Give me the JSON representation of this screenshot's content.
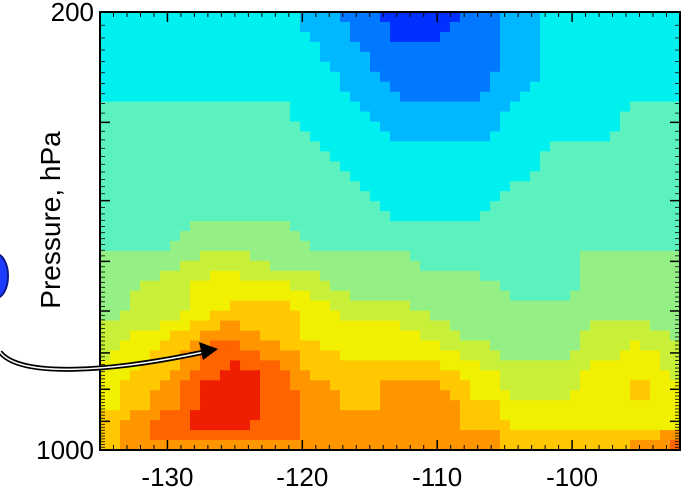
{
  "chart_data": {
    "type": "heatmap",
    "title": "",
    "xlabel": "",
    "ylabel": "Pressure, hPa",
    "x_ticks": [
      -130,
      -120,
      -110,
      -100
    ],
    "x_tick_labels": [
      "-130",
      "-120",
      "-110",
      "-100"
    ],
    "y_tick_labels": [
      "200",
      "1000"
    ],
    "xlim": [
      -135,
      -92
    ],
    "ylim": [
      1000,
      200
    ],
    "y_axis_inverted": true,
    "colormap": "jet",
    "grid": false,
    "x": [
      -135,
      -130,
      -127,
      -125,
      -122,
      -119,
      -116,
      -113,
      -110,
      -107,
      -104,
      -101,
      -98,
      -95,
      -92
    ],
    "y_levels": [
      200,
      250,
      300,
      350,
      400,
      450,
      500,
      550,
      600,
      650,
      700,
      750,
      800,
      850,
      900,
      950,
      1000
    ],
    "level_scale": [
      1,
      2,
      3,
      4,
      5,
      6,
      7,
      8,
      9,
      10,
      11,
      12
    ],
    "z": [
      [
        4,
        4,
        4,
        4,
        4,
        3,
        2,
        1,
        1,
        2,
        3,
        4,
        4,
        4,
        4
      ],
      [
        4,
        4,
        4,
        4,
        4,
        4,
        3,
        2,
        2,
        2,
        3,
        4,
        4,
        4,
        4
      ],
      [
        5,
        5,
        5,
        5,
        5,
        4,
        4,
        3,
        3,
        3,
        4,
        4,
        4,
        5,
        5
      ],
      [
        5,
        5,
        5,
        5,
        5,
        5,
        4,
        4,
        4,
        4,
        4,
        5,
        5,
        5,
        5
      ],
      [
        5,
        5,
        5,
        5,
        5,
        5,
        5,
        4,
        4,
        4,
        5,
        5,
        5,
        5,
        5
      ],
      [
        5,
        5,
        6,
        6,
        6,
        5,
        5,
        5,
        5,
        5,
        5,
        5,
        5,
        5,
        5
      ],
      [
        6,
        6,
        7,
        7,
        6,
        6,
        6,
        6,
        5,
        5,
        5,
        5,
        6,
        6,
        6
      ],
      [
        6,
        7,
        8,
        8,
        8,
        7,
        6,
        6,
        6,
        6,
        5,
        5,
        6,
        6,
        6
      ],
      [
        6,
        7,
        8,
        9,
        9,
        8,
        7,
        7,
        6,
        6,
        6,
        6,
        6,
        6,
        6
      ],
      [
        7,
        8,
        10,
        10,
        9,
        8,
        8,
        8,
        7,
        6,
        6,
        6,
        7,
        7,
        6
      ],
      [
        7,
        9,
        11,
        11,
        10,
        9,
        8,
        8,
        8,
        7,
        6,
        6,
        7,
        8,
        7
      ],
      [
        8,
        9,
        11,
        12,
        11,
        9,
        9,
        9,
        9,
        8,
        7,
        7,
        8,
        8,
        7
      ],
      [
        8,
        10,
        12,
        12,
        11,
        10,
        9,
        10,
        10,
        8,
        7,
        7,
        8,
        9,
        8
      ],
      [
        8,
        10,
        12,
        12,
        11,
        10,
        9,
        10,
        10,
        9,
        8,
        8,
        8,
        8,
        8
      ],
      [
        9,
        11,
        12,
        12,
        11,
        10,
        10,
        10,
        10,
        9,
        8,
        8,
        8,
        8,
        8
      ],
      [
        9,
        11,
        11,
        11,
        11,
        10,
        10,
        10,
        10,
        10,
        9,
        9,
        9,
        9,
        10
      ],
      [
        9,
        10,
        10,
        10,
        10,
        10,
        10,
        10,
        10,
        10,
        9,
        9,
        9,
        10,
        11
      ]
    ]
  },
  "annotation": {
    "type": "arrow",
    "label": ""
  },
  "colors": {
    "ramp": [
      "#0000c8",
      "#0030ff",
      "#0078ff",
      "#00b8ff",
      "#00f0f0",
      "#5cf2c0",
      "#94f084",
      "#c8f038",
      "#f0f000",
      "#ffc800",
      "#ff9600",
      "#ff6400",
      "#f01e00"
    ],
    "marker_blue": "#1e3cff"
  }
}
